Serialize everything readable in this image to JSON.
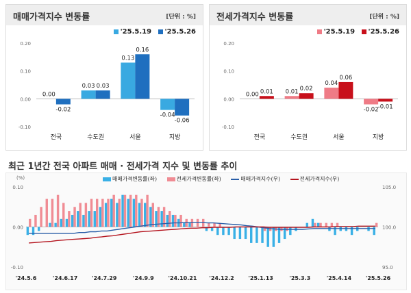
{
  "sale_chart": {
    "title": "매매가격지수 변동률",
    "unit": "[단위 : %]",
    "legend": [
      "'25.5.19",
      "'25.5.26"
    ],
    "colors": [
      "#39a9e1",
      "#1f6fbf"
    ]
  },
  "jeonse_chart": {
    "title": "전세가격지수 변동률",
    "unit": "[단위 : %]",
    "legend": [
      "'25.5.19",
      "'25.5.26"
    ],
    "colors": [
      "#ef7b86",
      "#c8101b"
    ]
  },
  "trend": {
    "title": "최근 1년간 전국 아파트 매매 · 전세가격 지수 및 변동률 추이",
    "left_unit": "(%)",
    "legend": [
      "매매가격변동률(좌)",
      "전세가격변동률(좌)",
      "매매가격지수(우)",
      "전세가격지수(우)"
    ],
    "colors": {
      "sale_bar": "#39b0e6",
      "jeonse_bar": "#f08c94",
      "sale_line": "#2a5ea8",
      "jeonse_line": "#b4141e"
    }
  },
  "chart_data": [
    {
      "type": "bar",
      "title": "매매가격지수 변동률",
      "categories": [
        "전국",
        "수도권",
        "서울",
        "지방"
      ],
      "series": [
        {
          "name": "'25.5.19",
          "values": [
            0.0,
            0.03,
            0.13,
            -0.04
          ]
        },
        {
          "name": "'25.5.26",
          "values": [
            -0.02,
            0.03,
            0.16,
            -0.06
          ]
        }
      ],
      "value_labels": [
        [
          "0.00",
          "0.03",
          "0.13",
          "-0.04"
        ],
        [
          "-0.02",
          "0.03",
          "0.16",
          "-0.06"
        ]
      ],
      "ylim": [
        -0.1,
        0.2
      ],
      "yticks": [
        "0.20",
        "0.10",
        "0.00",
        "-0.10"
      ],
      "grid": false,
      "legend_position": "top-right"
    },
    {
      "type": "bar",
      "title": "전세가격지수 변동률",
      "categories": [
        "전국",
        "수도권",
        "서울",
        "지방"
      ],
      "series": [
        {
          "name": "'25.5.19",
          "values": [
            0.0,
            0.01,
            0.04,
            -0.02
          ]
        },
        {
          "name": "'25.5.26",
          "values": [
            0.01,
            0.02,
            0.06,
            -0.01
          ]
        }
      ],
      "value_labels": [
        [
          "0.00",
          "0.01",
          "0.04",
          "-0.02"
        ],
        [
          "0.01",
          "0.02",
          "0.06",
          "-0.01"
        ]
      ],
      "ylim": [
        -0.1,
        0.2
      ],
      "yticks": [
        "0.20",
        "0.10",
        "0.00",
        "-0.10"
      ],
      "grid": false,
      "legend_position": "top-right"
    },
    {
      "type": "bar",
      "title": "최근 1년간 전국 아파트 매매 · 전세가격 지수 및 변동률 추이",
      "x_tick_labels": [
        "'24.5.6",
        "'24.6.17",
        "'24.7.29",
        "'24.9.9",
        "'24.10.21",
        "'24.12.2",
        "'25.1.13",
        "'25.3.3",
        "'25.4.14",
        "'25.5.26"
      ],
      "ylim_left": [
        -0.1,
        0.1
      ],
      "yticks_left": [
        "0.10",
        "0.00",
        "-0.10"
      ],
      "ylim_right": [
        95.0,
        105.0
      ],
      "yticks_right": [
        "105.0",
        "100.0",
        "95.0"
      ],
      "legend_position": "top",
      "series": [
        {
          "name": "매매가격변동률(좌)",
          "type": "bar",
          "values": [
            -0.02,
            -0.02,
            -0.01,
            0.0,
            0.01,
            0.01,
            0.02,
            0.02,
            0.03,
            0.04,
            0.03,
            0.04,
            0.04,
            0.05,
            0.06,
            0.07,
            0.06,
            0.08,
            0.07,
            0.07,
            0.06,
            0.06,
            0.05,
            0.04,
            0.04,
            0.03,
            0.03,
            0.02,
            0.01,
            0.01,
            0.0,
            0.0,
            -0.01,
            -0.01,
            -0.02,
            -0.02,
            -0.02,
            -0.03,
            -0.03,
            -0.03,
            -0.04,
            -0.04,
            -0.04,
            -0.05,
            -0.05,
            -0.04,
            -0.03,
            -0.02,
            -0.01,
            0.0,
            0.01,
            0.02,
            0.01,
            0.0,
            -0.01,
            -0.02,
            -0.01,
            -0.01,
            -0.02,
            -0.01,
            0.0,
            -0.01,
            -0.02
          ]
        },
        {
          "name": "전세가격변동률(좌)",
          "type": "bar",
          "values": [
            0.02,
            0.03,
            0.05,
            0.07,
            0.07,
            0.08,
            0.06,
            0.04,
            0.05,
            0.06,
            0.06,
            0.07,
            0.07,
            0.07,
            0.07,
            0.08,
            0.07,
            0.08,
            0.08,
            0.08,
            0.07,
            0.08,
            0.06,
            0.05,
            0.05,
            0.04,
            0.03,
            0.03,
            0.02,
            0.02,
            0.02,
            0.02,
            0.01,
            0.01,
            0.01,
            0.0,
            0.0,
            0.0,
            0.0,
            0.0,
            0.0,
            0.0,
            -0.01,
            -0.01,
            -0.01,
            -0.01,
            -0.01,
            0.0,
            0.0,
            0.0,
            0.0,
            0.01,
            0.01,
            0.01,
            0.01,
            0.01,
            0.0,
            0.0,
            0.0,
            0.0,
            0.0,
            0.0,
            0.01
          ]
        },
        {
          "name": "매매가격지수(우)",
          "type": "line",
          "values": [
            99.2,
            99.2,
            99.2,
            99.2,
            99.2,
            99.2,
            99.2,
            99.2,
            99.2,
            99.3,
            99.3,
            99.4,
            99.4,
            99.5,
            99.5,
            99.6,
            99.7,
            99.8,
            99.9,
            100.0,
            100.1,
            100.2,
            100.3,
            100.35,
            100.4,
            100.45,
            100.5,
            100.5,
            100.55,
            100.55,
            100.55,
            100.55,
            100.5,
            100.5,
            100.45,
            100.4,
            100.35,
            100.3,
            100.25,
            100.15,
            100.1,
            100.0,
            99.9,
            99.8,
            99.75,
            99.7,
            99.7,
            99.7,
            99.7,
            99.7,
            99.75,
            99.8,
            99.8,
            99.8,
            99.8,
            99.8,
            99.8,
            99.8,
            99.8,
            99.8,
            99.8,
            99.8,
            99.8
          ]
        },
        {
          "name": "전세가격지수(우)",
          "type": "line",
          "values": [
            98.0,
            98.05,
            98.1,
            98.15,
            98.2,
            98.3,
            98.35,
            98.4,
            98.45,
            98.5,
            98.55,
            98.6,
            98.7,
            98.75,
            98.85,
            98.9,
            99.0,
            99.1,
            99.2,
            99.3,
            99.4,
            99.45,
            99.5,
            99.55,
            99.6,
            99.65,
            99.7,
            99.75,
            99.8,
            99.85,
            99.85,
            99.9,
            99.9,
            99.95,
            99.95,
            99.95,
            99.95,
            100.0,
            100.0,
            100.0,
            100.0,
            100.0,
            100.0,
            99.95,
            99.95,
            99.95,
            99.95,
            99.95,
            99.95,
            99.95,
            99.95,
            100.0,
            100.0,
            100.0,
            100.0,
            100.05,
            100.05,
            100.05,
            100.05,
            100.1,
            100.1,
            100.1,
            100.1
          ]
        }
      ]
    }
  ]
}
